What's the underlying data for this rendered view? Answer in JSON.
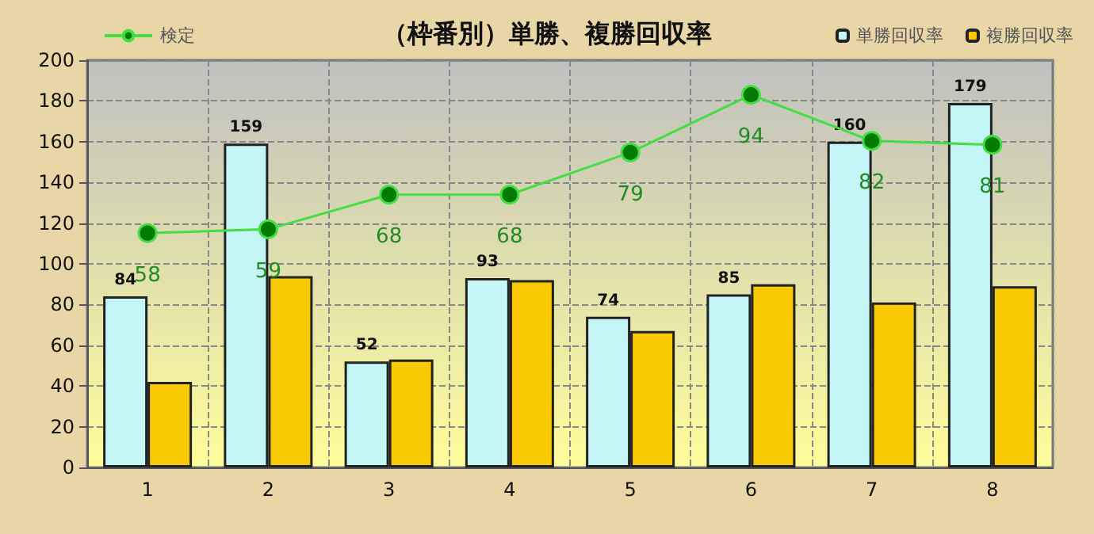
{
  "chart_data": {
    "type": "bar",
    "title": "（枠番別）単勝、複勝回収率",
    "categories": [
      "1",
      "2",
      "3",
      "4",
      "5",
      "6",
      "7",
      "8"
    ],
    "series": [
      {
        "name": "単勝回収率",
        "color": "#c4f6f8",
        "values": [
          84,
          159,
          52,
          93,
          74,
          85,
          160,
          179
        ],
        "value_labels": [
          "84",
          "159",
          "52",
          "93",
          "74",
          "85",
          "160",
          "179"
        ]
      },
      {
        "name": "複勝回収率",
        "color": "#f8c800",
        "values": [
          42,
          94,
          53,
          92,
          67,
          90,
          81,
          89
        ]
      },
      {
        "name": "検定",
        "type": "line",
        "axis": "y2",
        "color": "#44dd44",
        "values": [
          58,
          59,
          68,
          68,
          79,
          94,
          82,
          81
        ],
        "value_labels": [
          "58",
          "59",
          "68",
          "68",
          "79",
          "94",
          "82",
          "81"
        ]
      }
    ],
    "ylim": [
      0,
      200
    ],
    "yticks": [
      0,
      20,
      40,
      60,
      80,
      100,
      120,
      140,
      160,
      180,
      200
    ],
    "y2lim": [
      -3,
      103
    ],
    "tick_labels": "xy",
    "grid": true,
    "legend": "top",
    "marker": "circle"
  }
}
